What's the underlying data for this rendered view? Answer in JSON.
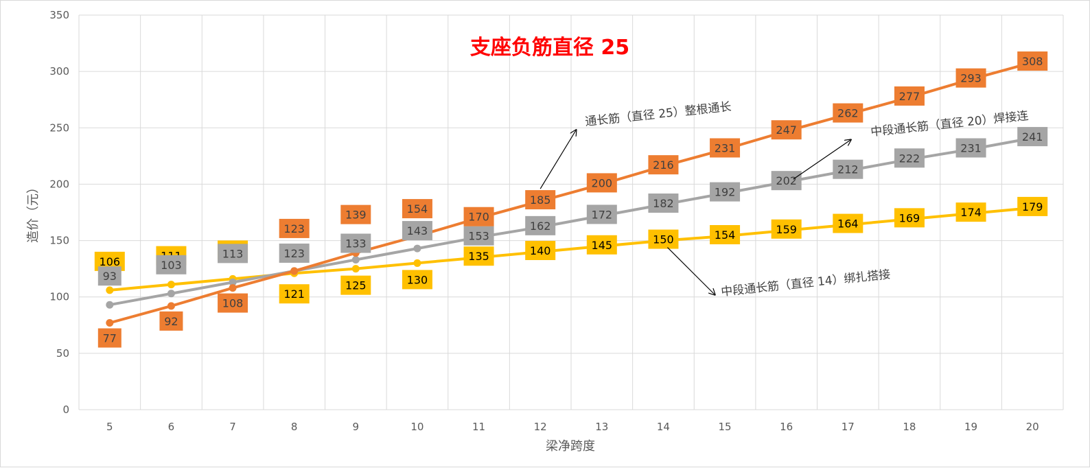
{
  "chart_data": {
    "type": "line",
    "title": "支座负筋直径 25",
    "xlabel": "梁净跨度",
    "ylabel": "造价（元）",
    "categories": [
      "5",
      "6",
      "7",
      "8",
      "9",
      "10",
      "11",
      "12",
      "13",
      "14",
      "15",
      "16",
      "17",
      "18",
      "19",
      "20"
    ],
    "ylim": [
      0,
      350
    ],
    "yticks": [
      0,
      50,
      100,
      150,
      200,
      250,
      300,
      350
    ],
    "grid": true,
    "series": [
      {
        "color": "#ffc000",
        "label_fill": "#ffc000",
        "label_text_color": "#000000",
        "values": [
          106,
          111,
          116,
          121,
          125,
          130,
          135,
          140,
          145,
          150,
          154,
          159,
          164,
          169,
          174,
          179
        ]
      },
      {
        "color": "#a5a5a5",
        "label_fill": "#a5a5a5",
        "label_text_color": "#404040",
        "values": [
          93,
          103,
          113,
          123,
          133,
          143,
          153,
          162,
          172,
          182,
          192,
          202,
          212,
          222,
          231,
          241
        ]
      },
      {
        "color": "#ed7d31",
        "label_fill": "#ed7d31",
        "label_text_color": "#404040",
        "values": [
          77,
          92,
          108,
          123,
          139,
          154,
          170,
          185,
          200,
          216,
          231,
          247,
          262,
          277,
          293,
          308
        ]
      }
    ],
    "annotations": [
      {
        "text": "通长筋（直径 25）整根通长",
        "points_to": {
          "series": 2,
          "x": "12"
        }
      },
      {
        "text": "中段通长筋（直径 20）焊接连",
        "points_to": {
          "series": 1,
          "x": "16"
        }
      },
      {
        "text": "中段通长筋（直径 14）绑扎搭接",
        "points_to": {
          "series": 0,
          "x": "14"
        }
      }
    ]
  }
}
